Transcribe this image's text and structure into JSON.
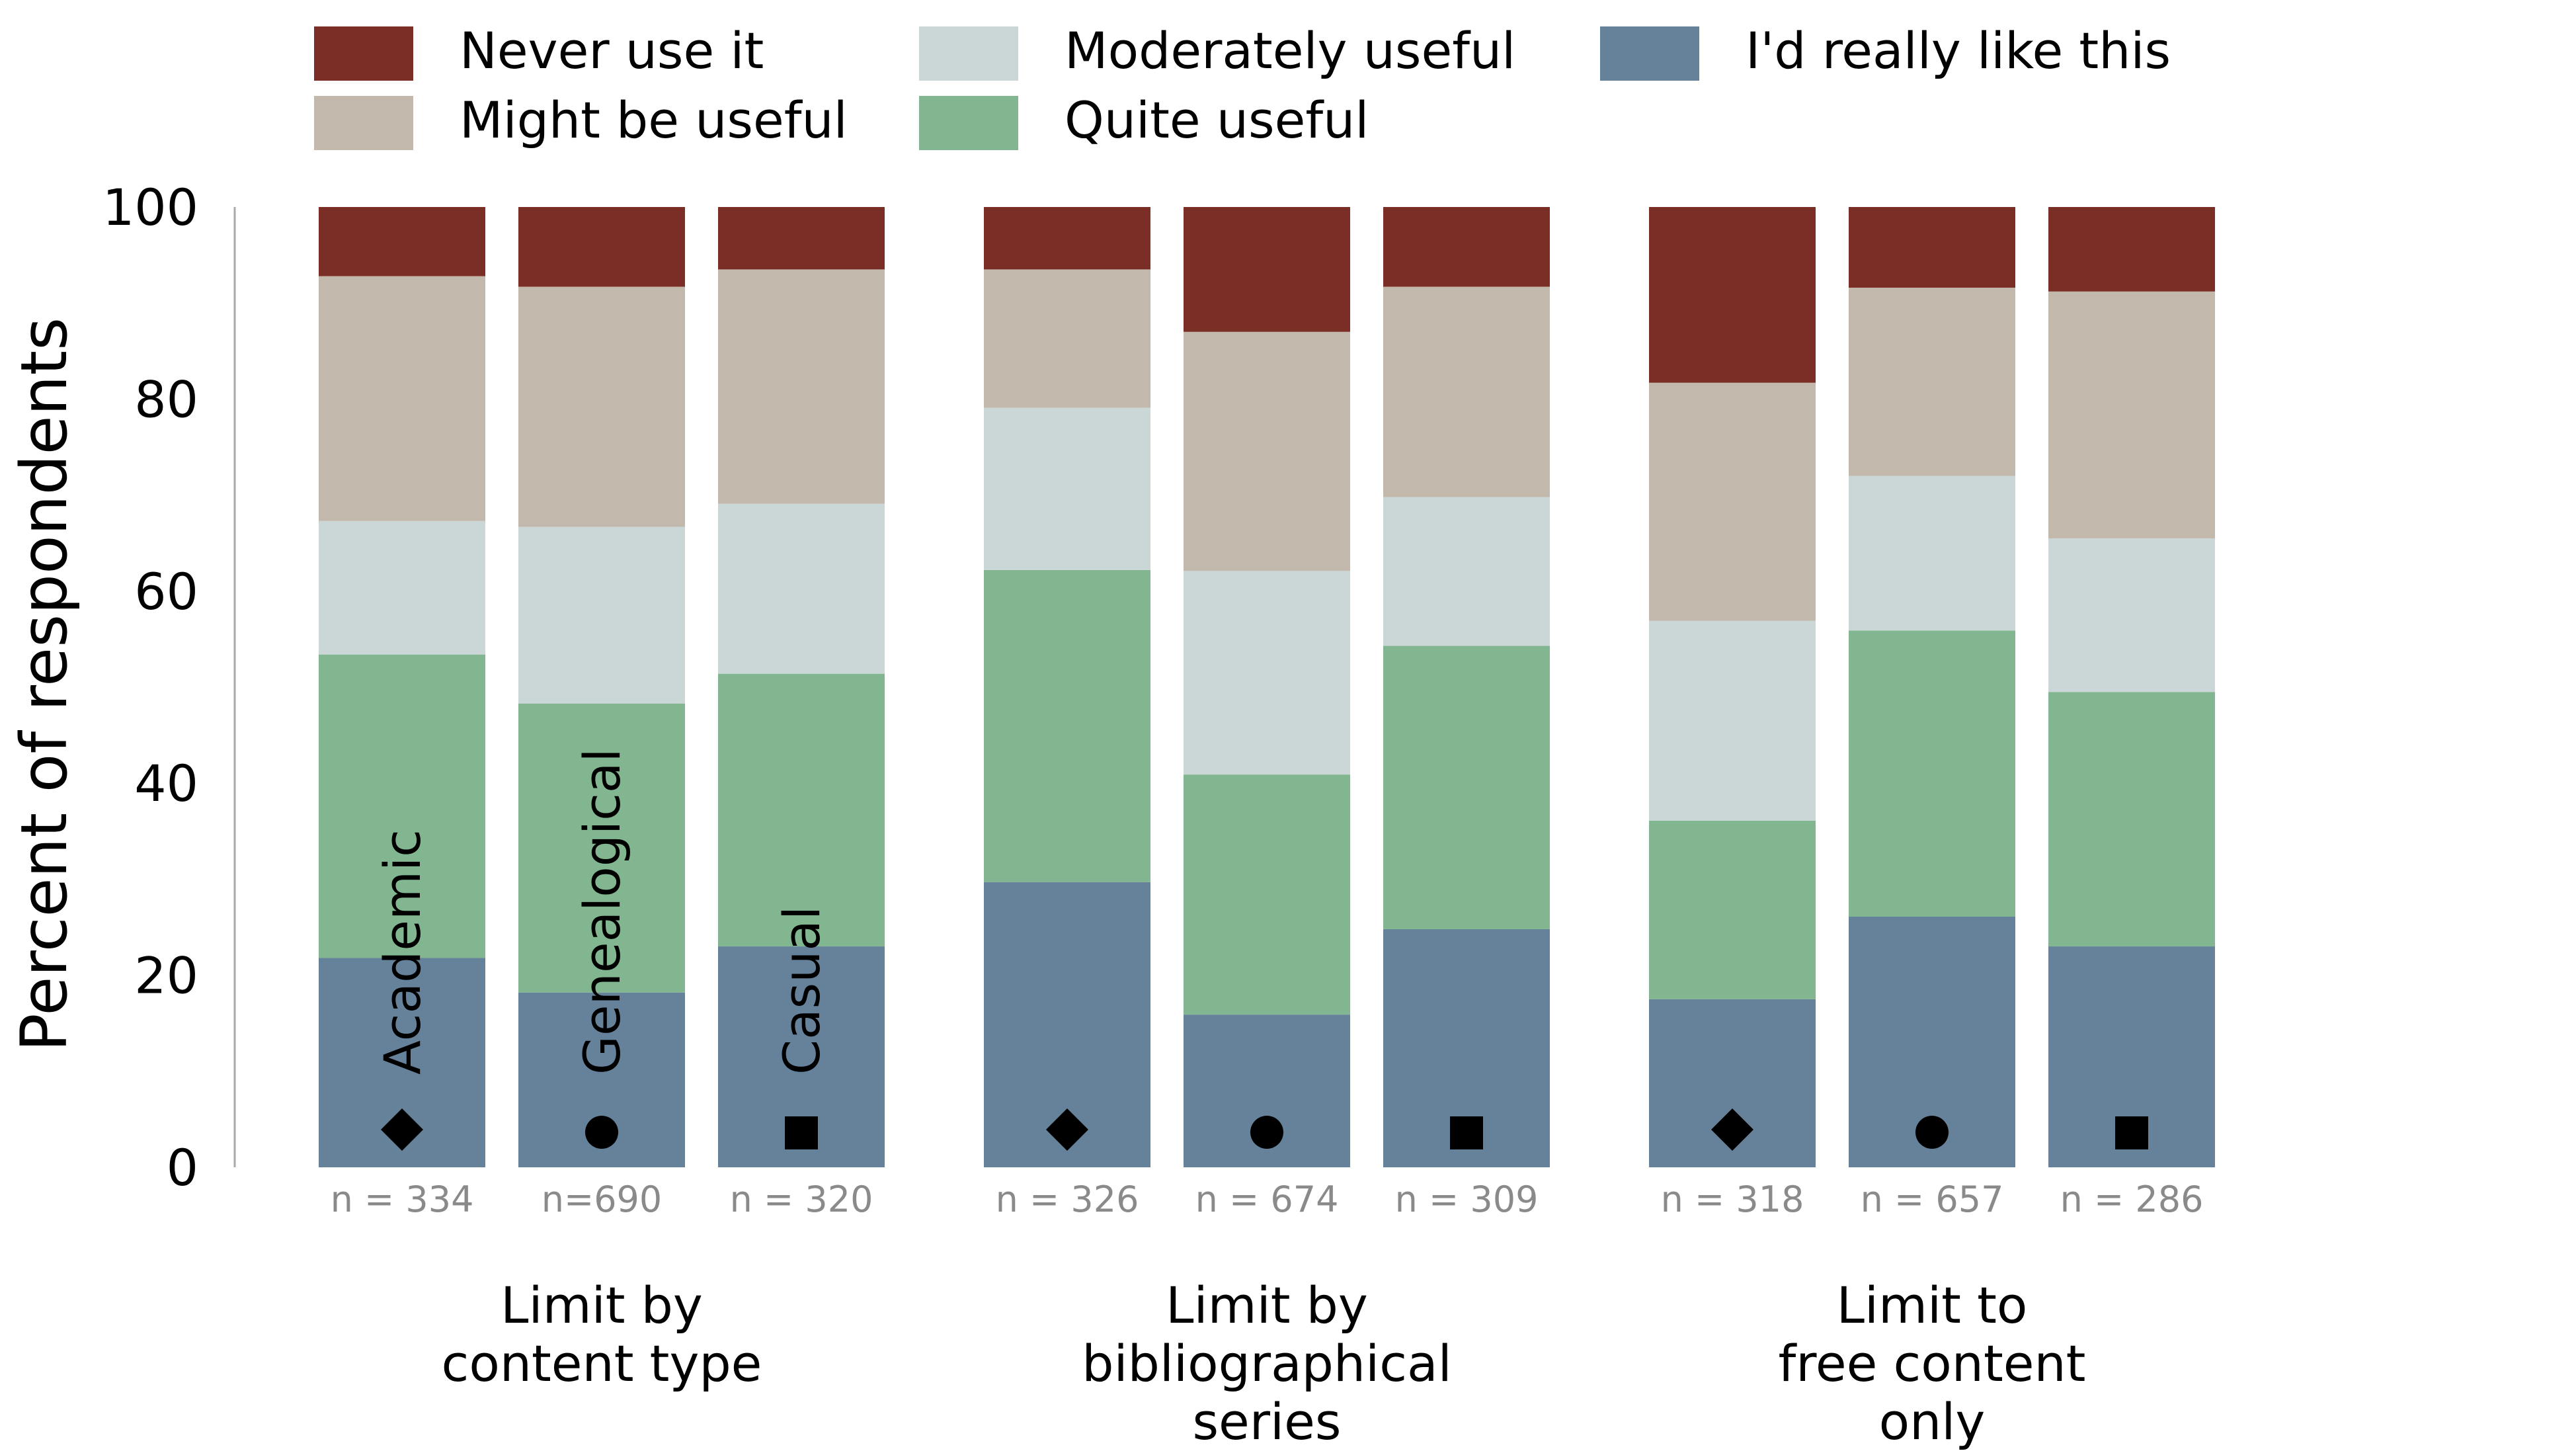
{
  "chart_data": {
    "type": "bar",
    "stacked": true,
    "ylabel": "Percent of respondents",
    "ylim": [
      0,
      100
    ],
    "yticks": [
      0,
      20,
      40,
      60,
      80,
      100
    ],
    "grid": false,
    "legend_position": "top",
    "legend": [
      {
        "name": "Never use it",
        "color": "#7b2e25"
      },
      {
        "name": "Might be useful",
        "color": "#c2b9ac"
      },
      {
        "name": "Moderately  useful",
        "color": "#cbd7d7"
      },
      {
        "name": "Quite useful",
        "color": "#81b690"
      },
      {
        "name": "I'd really like this",
        "color": "#66829b"
      }
    ],
    "stack_order_bottom_to_top": [
      "I'd really like this",
      "Quite useful",
      "Moderately  useful",
      "Might be useful",
      "Never use it"
    ],
    "user_types": [
      {
        "label": "Academic",
        "marker": "diamond"
      },
      {
        "label": "Genealogical",
        "marker": "circle"
      },
      {
        "label": "Casual",
        "marker": "square"
      }
    ],
    "groups": [
      {
        "label": [
          "Limit by",
          "content type"
        ],
        "bars": [
          {
            "n_label": "n = 334",
            "marker": "diamond",
            "type_label": "Academic",
            "values": [
              21.8,
              31.6,
              13.9,
              25.5,
              7.2
            ]
          },
          {
            "n_label": "n=690",
            "marker": "circle",
            "type_label": "Genealogical",
            "values": [
              18.2,
              30.1,
              18.4,
              25.0,
              8.3
            ]
          },
          {
            "n_label": "n = 320",
            "marker": "square",
            "type_label": "Casual",
            "values": [
              23.0,
              28.4,
              17.7,
              24.4,
              6.5
            ]
          }
        ]
      },
      {
        "label": [
          "Limit by",
          "bibliographical",
          "series"
        ],
        "bars": [
          {
            "n_label": "n = 326",
            "marker": "diamond",
            "type_label": "",
            "values": [
              29.7,
              32.5,
              16.9,
              14.4,
              6.5
            ]
          },
          {
            "n_label": "n = 674",
            "marker": "circle",
            "type_label": "",
            "values": [
              15.9,
              25.0,
              21.2,
              24.9,
              13.0
            ]
          },
          {
            "n_label": "n = 309",
            "marker": "square",
            "type_label": "",
            "values": [
              24.8,
              29.5,
              15.5,
              21.9,
              8.3
            ]
          }
        ]
      },
      {
        "label": [
          "Limit to",
          "free content",
          "only"
        ],
        "bars": [
          {
            "n_label": "n = 318",
            "marker": "diamond",
            "type_label": "",
            "values": [
              17.5,
              18.6,
              20.8,
              24.8,
              18.3
            ]
          },
          {
            "n_label": "n = 657",
            "marker": "circle",
            "type_label": "",
            "values": [
              26.1,
              29.8,
              16.1,
              19.6,
              8.4
            ]
          },
          {
            "n_label": "n = 286",
            "marker": "square",
            "type_label": "",
            "values": [
              23.0,
              26.5,
              16.0,
              25.7,
              8.8
            ]
          }
        ]
      }
    ]
  }
}
